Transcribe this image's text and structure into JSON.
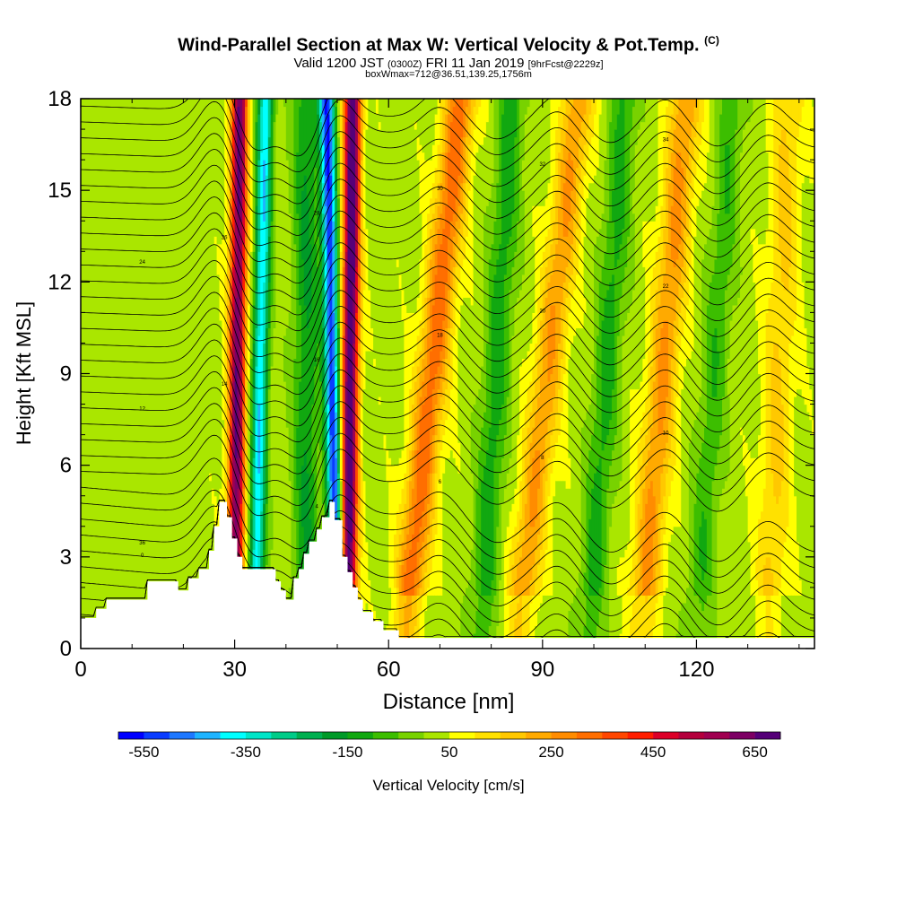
{
  "header": {
    "title": "Wind-Parallel Section at Max W: Vertical Velocity & Pot.Temp.",
    "copyright_mark": "(C)",
    "valid_prefix": "Valid 1200 JST",
    "valid_utc": "(0300Z)",
    "valid_date": "FRI 11 Jan 2019",
    "forecast_info": "[9hrFcst@2229z]",
    "box_info": "boxWmax=712@36.51,139.25,1756m"
  },
  "chart_data": {
    "type": "heatmap",
    "xlabel": "Distance [nm]",
    "ylabel": "Height [Kft MSL]",
    "xlim": [
      0,
      143
    ],
    "ylim": [
      0,
      18
    ],
    "xticks": [
      0,
      30,
      60,
      90,
      120
    ],
    "yticks": [
      0,
      3,
      6,
      9,
      12,
      15,
      18
    ],
    "colorbar": {
      "label": "Vertical Velocity [cm/s]",
      "tick_labels": [
        "-550",
        "-350",
        "-150",
        "50",
        "250",
        "450",
        "650"
      ],
      "bins": [
        -600,
        -550,
        -500,
        -450,
        -400,
        -350,
        -300,
        -250,
        -200,
        -150,
        -100,
        -50,
        0,
        50,
        100,
        150,
        200,
        250,
        300,
        350,
        400,
        450,
        500,
        550,
        600,
        650,
        700
      ],
      "colors": [
        "#0000ff",
        "#0a3cff",
        "#1e78ff",
        "#1eb4ff",
        "#00ffff",
        "#00e6c8",
        "#00cc88",
        "#00b050",
        "#009a28",
        "#11a810",
        "#3cbe00",
        "#78d200",
        "#aae600",
        "#ffff00",
        "#ffe100",
        "#ffc800",
        "#ffaa00",
        "#ff8c00",
        "#ff6e00",
        "#ff4600",
        "#ff1e00",
        "#dc0028",
        "#b4003c",
        "#a00050",
        "#7d0064",
        "#550078"
      ]
    },
    "terrain_kft": [
      [
        0,
        1.0
      ],
      [
        3,
        1.0
      ],
      [
        3,
        1.3
      ],
      [
        5,
        1.3
      ],
      [
        5,
        1.6
      ],
      [
        13,
        1.6
      ],
      [
        13,
        2.2
      ],
      [
        19,
        2.2
      ],
      [
        19,
        1.9
      ],
      [
        21,
        1.9
      ],
      [
        21,
        2.3
      ],
      [
        23,
        2.3
      ],
      [
        23,
        2.6
      ],
      [
        25,
        2.6
      ],
      [
        25,
        3.2
      ],
      [
        26,
        3.2
      ],
      [
        26,
        4.0
      ],
      [
        27,
        4.0
      ],
      [
        27,
        4.8
      ],
      [
        28.5,
        4.8
      ],
      [
        28.5,
        4.3
      ],
      [
        29.5,
        4.3
      ],
      [
        29.5,
        3.6
      ],
      [
        30.5,
        3.6
      ],
      [
        30.5,
        3.0
      ],
      [
        31.5,
        3.0
      ],
      [
        31.5,
        2.6
      ],
      [
        38,
        2.6
      ],
      [
        38,
        2.2
      ],
      [
        39,
        2.2
      ],
      [
        39,
        1.9
      ],
      [
        40,
        1.9
      ],
      [
        40,
        1.6
      ],
      [
        41.5,
        1.6
      ],
      [
        41.5,
        2.3
      ],
      [
        42.5,
        2.3
      ],
      [
        42.5,
        2.6
      ],
      [
        43.5,
        2.6
      ],
      [
        43.5,
        3.1
      ],
      [
        44.5,
        3.1
      ],
      [
        44.5,
        3.5
      ],
      [
        46,
        3.5
      ],
      [
        46,
        3.9
      ],
      [
        47,
        3.9
      ],
      [
        47,
        4.3
      ],
      [
        48.5,
        4.3
      ],
      [
        48.5,
        4.8
      ],
      [
        49.5,
        4.8
      ],
      [
        49.5,
        4.2
      ],
      [
        51,
        4.2
      ],
      [
        51,
        3.0
      ],
      [
        52,
        3.0
      ],
      [
        52,
        2.5
      ],
      [
        53,
        2.5
      ],
      [
        53,
        2.0
      ],
      [
        54,
        2.0
      ],
      [
        54,
        1.6
      ],
      [
        55,
        1.6
      ],
      [
        55,
        1.2
      ],
      [
        57,
        1.2
      ],
      [
        57,
        0.9
      ],
      [
        59,
        0.9
      ],
      [
        59,
        0.6
      ],
      [
        62,
        0.6
      ],
      [
        62,
        0.35
      ],
      [
        143,
        0.35
      ]
    ],
    "updraft_bands": [
      {
        "center_top": 31,
        "center_bottom": 30,
        "peak_w": 620
      },
      {
        "center_top": 53,
        "center_bottom": 52,
        "peak_w": 712
      },
      {
        "center_top": 74,
        "center_bottom": 63,
        "peak_w": 300
      },
      {
        "center_top": 97,
        "center_bottom": 85,
        "peak_w": 220
      },
      {
        "center_top": 118,
        "center_bottom": 109,
        "peak_w": 230
      },
      {
        "center_top": 138,
        "center_bottom": 134,
        "peak_w": 130
      }
    ],
    "downdraft_bands": [
      {
        "center_top": 36,
        "center_bottom": 34,
        "min_w": -420
      },
      {
        "center_top": 48,
        "center_bottom": 50,
        "min_w": -560
      },
      {
        "center_top": 44,
        "center_bottom": 44,
        "min_w": -180
      },
      {
        "center_top": 84,
        "center_bottom": 78,
        "min_w": -160
      },
      {
        "center_top": 106,
        "center_bottom": 99,
        "min_w": -150
      },
      {
        "center_top": 127,
        "center_bottom": 120,
        "min_w": -120
      }
    ],
    "contour_labels": [
      "0",
      "2",
      "4",
      "6",
      "8",
      "10",
      "12",
      "14",
      "16",
      "18",
      "20",
      "22",
      "24",
      "26",
      "28",
      "30",
      "32",
      "34",
      "36"
    ]
  }
}
